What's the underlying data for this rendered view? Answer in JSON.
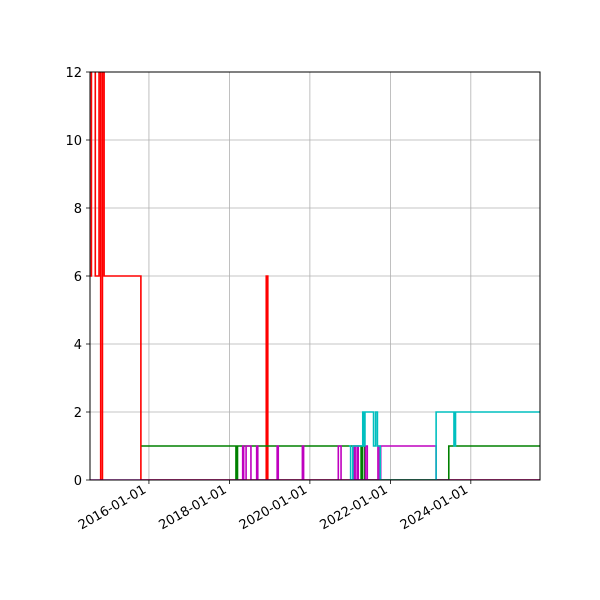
{
  "chart_data": {
    "type": "line",
    "title": "",
    "xlabel": "",
    "ylabel": "",
    "grid": true,
    "legend": null,
    "xlim": [
      "2014-07-15",
      "2025-09-20"
    ],
    "ylim": [
      0,
      12
    ],
    "x_ticks": [
      "2016-01-01",
      "2018-01-01",
      "2020-01-01",
      "2022-01-01",
      "2024-01-01"
    ],
    "y_ticks": [
      0,
      2,
      4,
      6,
      8,
      10,
      12
    ],
    "step": "post",
    "series": [
      {
        "name": "red",
        "color": "#ff0000",
        "points": [
          [
            "2014-07-20",
            6
          ],
          [
            "2014-07-28",
            14
          ],
          [
            "2014-08-10",
            14
          ],
          [
            "2014-09-01",
            6
          ],
          [
            "2014-10-05",
            14
          ],
          [
            "2014-10-20",
            0
          ],
          [
            "2014-11-05",
            14
          ],
          [
            "2014-11-20",
            6
          ],
          [
            "2015-10-20",
            0
          ],
          [
            "2018-12-01",
            6
          ],
          [
            "2018-12-15",
            0
          ],
          [
            "2025-09-20",
            0
          ]
        ]
      },
      {
        "name": "green",
        "color": "#008000",
        "points": [
          [
            "2015-10-25",
            1
          ],
          [
            "2018-03-01",
            0
          ],
          [
            "2018-03-15",
            1
          ],
          [
            "2021-04-10",
            0
          ],
          [
            "2021-04-20",
            1
          ],
          [
            "2021-05-10",
            0
          ],
          [
            "2023-06-01",
            0
          ],
          [
            "2023-06-15",
            1
          ],
          [
            "2025-09-20",
            1
          ]
        ]
      },
      {
        "name": "magenta",
        "color": "#bf00bf",
        "points": [
          [
            "2014-07-15",
            0
          ],
          [
            "2018-05-01",
            1
          ],
          [
            "2018-05-10",
            0
          ],
          [
            "2018-06-01",
            1
          ],
          [
            "2018-07-15",
            0
          ],
          [
            "2018-09-05",
            1
          ],
          [
            "2018-09-15",
            0
          ],
          [
            "2019-03-10",
            1
          ],
          [
            "2019-03-20",
            0
          ],
          [
            "2019-10-25",
            1
          ],
          [
            "2019-11-05",
            0
          ],
          [
            "2020-09-15",
            1
          ],
          [
            "2020-10-10",
            0
          ],
          [
            "2021-02-01",
            1
          ],
          [
            "2021-02-15",
            0
          ],
          [
            "2021-03-05",
            1
          ],
          [
            "2021-03-15",
            0
          ],
          [
            "2021-05-20",
            1
          ],
          [
            "2021-06-05",
            0
          ],
          [
            "2021-09-10",
            1
          ],
          [
            "2021-09-25",
            0
          ],
          [
            "2021-10-05",
            1
          ],
          [
            "2023-02-20",
            0
          ],
          [
            "2025-09-20",
            0
          ]
        ]
      },
      {
        "name": "cyan",
        "color": "#00bfbf",
        "points": [
          [
            "2020-12-20",
            1
          ],
          [
            "2021-01-05",
            0
          ],
          [
            "2021-01-25",
            1
          ],
          [
            "2021-04-25",
            2
          ],
          [
            "2021-05-05",
            1
          ],
          [
            "2021-05-15",
            2
          ],
          [
            "2021-08-01",
            1
          ],
          [
            "2021-08-20",
            2
          ],
          [
            "2021-09-05",
            1
          ],
          [
            "2021-10-01",
            0
          ],
          [
            "2023-02-20",
            2
          ],
          [
            "2023-08-01",
            1
          ],
          [
            "2023-08-15",
            2
          ],
          [
            "2025-09-20",
            2
          ]
        ]
      }
    ]
  }
}
